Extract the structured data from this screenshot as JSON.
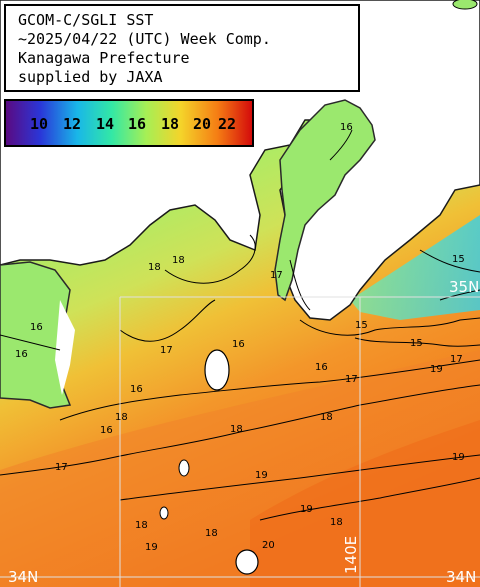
{
  "header": {
    "lines": [
      "GCOM-C/SGLI SST",
      "~2025/04/22 (UTC) Week Comp.",
      "Kanagawa Prefecture",
      "supplied by JAXA"
    ]
  },
  "colorbar": {
    "ticks": [
      "10",
      "12",
      "14",
      "16",
      "18",
      "20",
      "22"
    ],
    "colors": [
      "#5a0a82",
      "#2a37d8",
      "#19b7e8",
      "#33e8a5",
      "#a6ef55",
      "#f4d42a",
      "#f57d14",
      "#d40b0b"
    ]
  },
  "map": {
    "land_color": "#ffffff",
    "contour_color": "#000000",
    "grid_color": "#e0e0e0",
    "contour_labels": [
      "16",
      "15",
      "18",
      "18",
      "16",
      "17",
      "16",
      "17",
      "16",
      "16",
      "15",
      "15",
      "16",
      "18",
      "17",
      "18",
      "18",
      "16",
      "17",
      "17",
      "19",
      "19",
      "18",
      "19",
      "19",
      "18",
      "18",
      "19",
      "20"
    ],
    "grid_labels": {
      "lon": "140E",
      "lat_left": "34N",
      "lat_right": "34N",
      "lat_upper": "35N"
    }
  }
}
